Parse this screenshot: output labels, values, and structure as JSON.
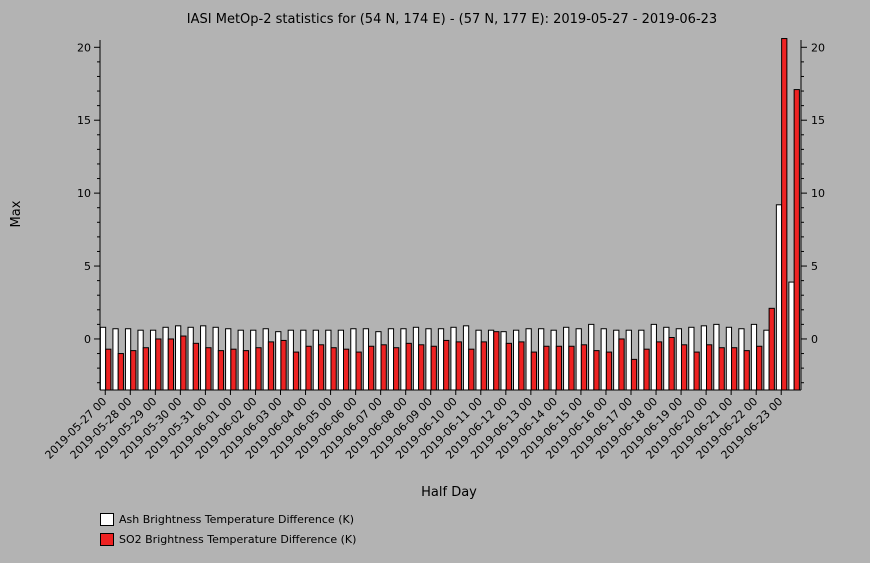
{
  "chart_data": {
    "type": "bar",
    "title": "IASI MetOp-2 statistics for (54 N, 174 E) - (57 N, 177 E): 2019-05-27 - 2019-06-23",
    "xlabel": "Half Day",
    "ylabel": "Max",
    "ylim": [
      -3.5,
      20.5
    ],
    "yticks": [
      0,
      5,
      10,
      15,
      20
    ],
    "grid": false,
    "legend_position": "bottom-left",
    "x_tick_labels": [
      "2019-05-27 00",
      "2019-05-28 00",
      "2019-05-29 00",
      "2019-05-30 00",
      "2019-05-31 00",
      "2019-06-01 00",
      "2019-06-02 00",
      "2019-06-03 00",
      "2019-06-04 00",
      "2019-06-05 00",
      "2019-06-06 00",
      "2019-06-07 00",
      "2019-06-08 00",
      "2019-06-09 00",
      "2019-06-10 00",
      "2019-06-11 00",
      "2019-06-12 00",
      "2019-06-13 00",
      "2019-06-14 00",
      "2019-06-15 00",
      "2019-06-16 00",
      "2019-06-17 00",
      "2019-06-18 00",
      "2019-06-19 00",
      "2019-06-20 00",
      "2019-06-21 00",
      "2019-06-22 00",
      "2019-06-23 00"
    ],
    "categories": [
      "2019-05-27 00",
      "2019-05-27 12",
      "2019-05-28 00",
      "2019-05-28 12",
      "2019-05-29 00",
      "2019-05-29 12",
      "2019-05-30 00",
      "2019-05-30 12",
      "2019-05-31 00",
      "2019-05-31 12",
      "2019-06-01 00",
      "2019-06-01 12",
      "2019-06-02 00",
      "2019-06-02 12",
      "2019-06-03 00",
      "2019-06-03 12",
      "2019-06-04 00",
      "2019-06-04 12",
      "2019-06-05 00",
      "2019-06-05 12",
      "2019-06-06 00",
      "2019-06-06 12",
      "2019-06-07 00",
      "2019-06-07 12",
      "2019-06-08 00",
      "2019-06-08 12",
      "2019-06-09 00",
      "2019-06-09 12",
      "2019-06-10 00",
      "2019-06-10 12",
      "2019-06-11 00",
      "2019-06-11 12",
      "2019-06-12 00",
      "2019-06-12 12",
      "2019-06-13 00",
      "2019-06-13 12",
      "2019-06-14 00",
      "2019-06-14 12",
      "2019-06-15 00",
      "2019-06-15 12",
      "2019-06-16 00",
      "2019-06-16 12",
      "2019-06-17 00",
      "2019-06-17 12",
      "2019-06-18 00",
      "2019-06-18 12",
      "2019-06-19 00",
      "2019-06-19 12",
      "2019-06-20 00",
      "2019-06-20 12",
      "2019-06-21 00",
      "2019-06-21 12",
      "2019-06-22 00",
      "2019-06-22 12",
      "2019-06-23 00",
      "2019-06-23 12"
    ],
    "series": [
      {
        "name": "Ash Brightness Temperature Difference (K)",
        "color": "#ffffff",
        "values": [
          0.8,
          0.7,
          0.7,
          0.6,
          0.6,
          0.8,
          0.9,
          0.8,
          0.9,
          0.8,
          0.7,
          0.6,
          0.6,
          0.7,
          0.5,
          0.6,
          0.6,
          0.6,
          0.6,
          0.6,
          0.7,
          0.7,
          0.5,
          0.7,
          0.7,
          0.8,
          0.7,
          0.7,
          0.8,
          0.9,
          0.6,
          0.6,
          0.5,
          0.6,
          0.7,
          0.7,
          0.6,
          0.8,
          0.7,
          1.0,
          0.7,
          0.6,
          0.6,
          0.6,
          1.0,
          0.8,
          0.7,
          0.8,
          0.9,
          1.0,
          0.8,
          0.7,
          1.0,
          0.6,
          9.2,
          3.9
        ]
      },
      {
        "name": "SO2 Brightness Temperature Difference (K)",
        "color": "#ee2222",
        "values": [
          -0.7,
          -1.0,
          -0.8,
          -0.6,
          0.0,
          0.0,
          0.2,
          -0.3,
          -0.6,
          -0.8,
          -0.7,
          -0.8,
          -0.6,
          -0.2,
          -0.1,
          -0.9,
          -0.5,
          -0.4,
          -0.6,
          -0.7,
          -0.9,
          -0.5,
          -0.4,
          -0.6,
          -0.3,
          -0.4,
          -0.5,
          -0.1,
          -0.2,
          -0.7,
          -0.2,
          0.5,
          -0.3,
          -0.2,
          -0.9,
          -0.5,
          -0.5,
          -0.5,
          -0.4,
          -0.8,
          -0.9,
          0.0,
          -1.4,
          -0.7,
          -0.2,
          0.1,
          -0.4,
          -0.9,
          -0.4,
          -0.6,
          -0.6,
          -0.8,
          -0.5,
          2.1,
          20.6,
          17.1
        ]
      }
    ]
  }
}
